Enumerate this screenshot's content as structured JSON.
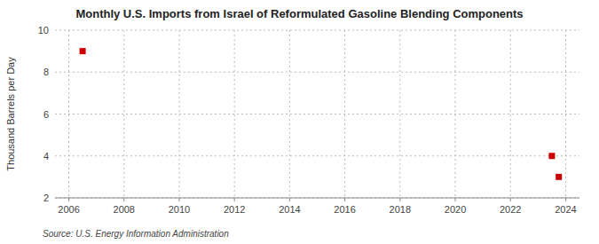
{
  "chart_data": {
    "type": "scatter",
    "title": "Monthly U.S. Imports from Israel of Reformulated Gasoline Blending Components",
    "ylabel": "Thousand Barrels per Day",
    "annotations": [
      "Source: U.S. Energy Information Administration"
    ],
    "x": [
      2006.5,
      2023.5,
      2023.75
    ],
    "values": [
      9.0,
      4.0,
      3.0
    ],
    "color": "#cc0000",
    "marker": "square",
    "xlim": [
      2005.5,
      2024.5
    ],
    "ylim": [
      2,
      10
    ],
    "xticks": [
      2006,
      2008,
      2010,
      2012,
      2014,
      2016,
      2018,
      2020,
      2022,
      2024
    ],
    "yticks": [
      2,
      4,
      6,
      8,
      10
    ],
    "grid": true
  }
}
